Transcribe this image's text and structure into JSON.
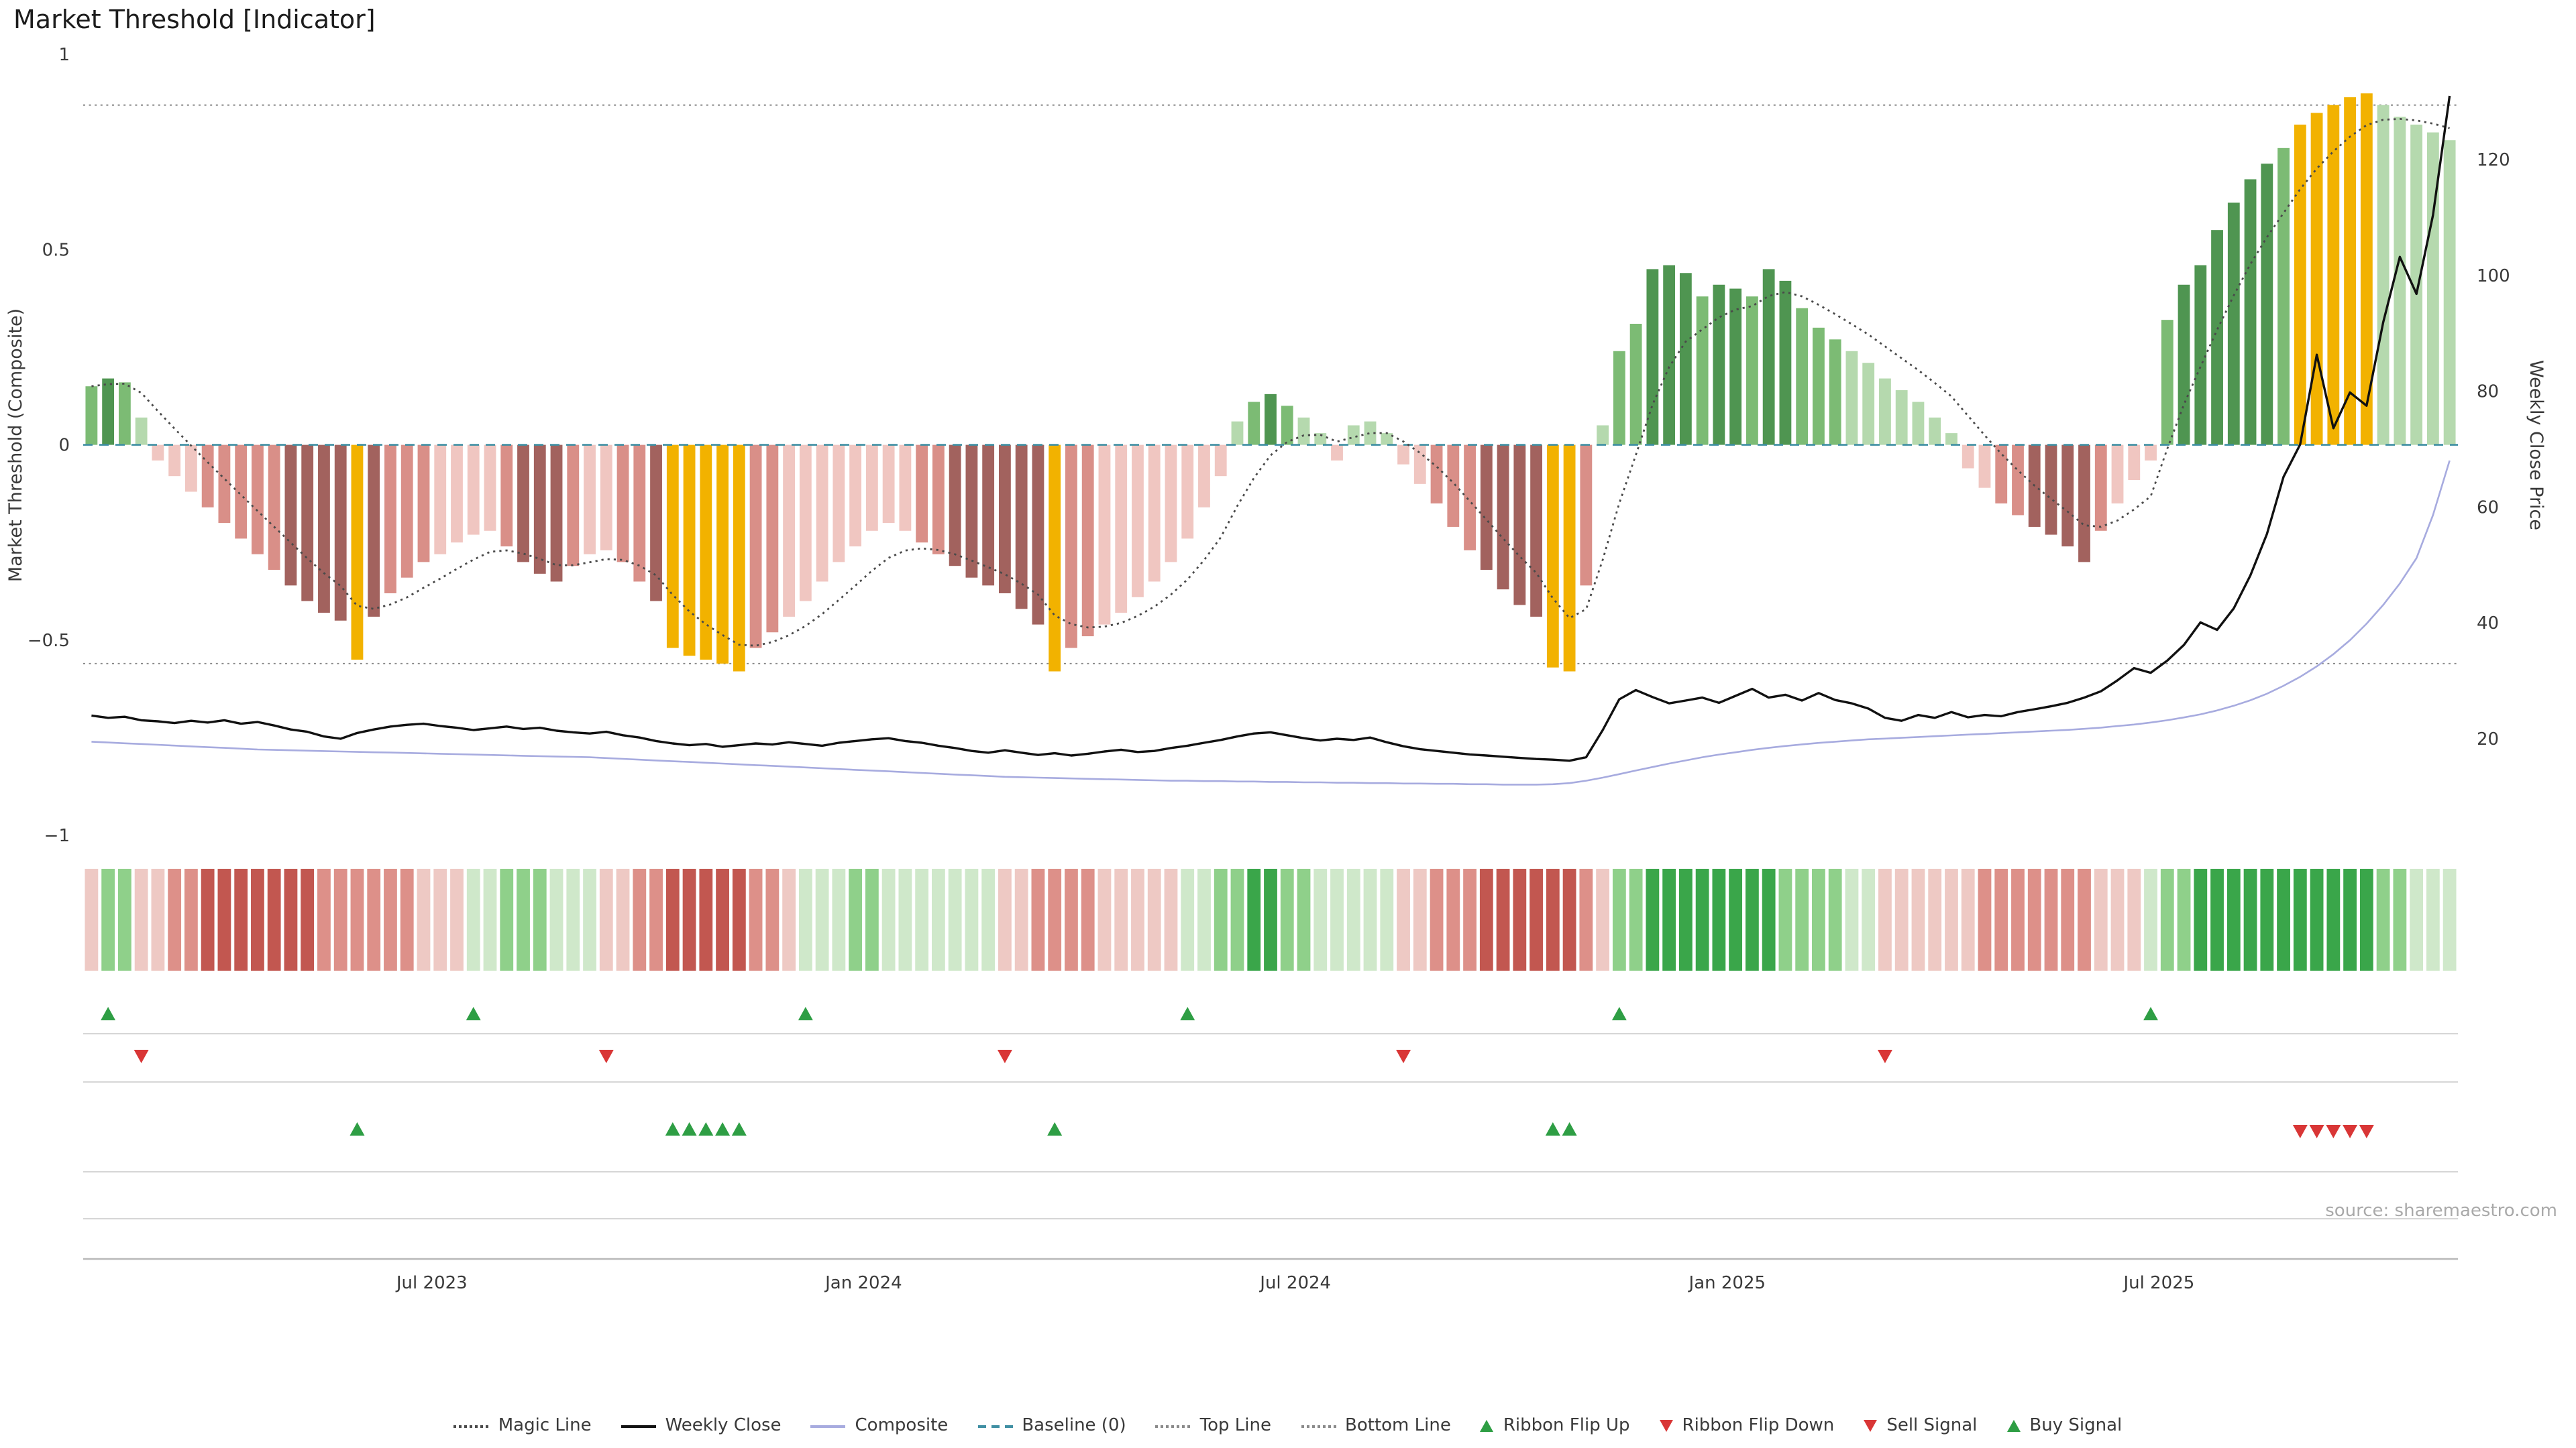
{
  "title": "Market Threshold [Indicator]",
  "source": "source: sharemaestro.com",
  "axes": {
    "y_left_label": "Market Threshold (Composite)",
    "y_right_label": "Weekly Close Price",
    "y_left_ticks": [
      "1",
      "0.5",
      "0",
      "−0.5",
      "−1"
    ],
    "y_left_tick_values": [
      1,
      0.5,
      0,
      -0.5,
      -1
    ],
    "y_right_ticks": [
      "120",
      "100",
      "80",
      "60",
      "40",
      "20"
    ],
    "y_right_tick_values": [
      120,
      100,
      80,
      60,
      40,
      20
    ]
  },
  "colors": {
    "bars": {
      "g1": "#b5d9ae",
      "g2": "#7cbb74",
      "g3": "#4f9551",
      "r1": "#f0c6c1",
      "r2": "#d98f88",
      "r3": "#a2625e",
      "gd": "#f2b200"
    },
    "ribbon": {
      "1": "#cfe8ca",
      "2": "#8fd08a",
      "3": "#3aa64a",
      "-1": "#eec9c4",
      "-2": "#dd9089",
      "-3": "#c25750"
    },
    "lines": {
      "magic": "#4a4a4a",
      "close": "#111111",
      "composite": "#a7abdf",
      "baseline": "#3f8fa3",
      "topline": "#8a8a8a",
      "bottomline": "#8a8a8a"
    },
    "signals": {
      "up": "#2e9e44",
      "down": "#d93636"
    },
    "lane_line": "#d6d6d6",
    "axis_line": "#b8b8b8",
    "tick_text": "#3a3a3a"
  },
  "legend": [
    {
      "label": "Magic Line",
      "icon": "dotted-line",
      "color": "#4a4a4a"
    },
    {
      "label": "Weekly Close",
      "icon": "solid-line",
      "color": "#111111"
    },
    {
      "label": "Composite",
      "icon": "solid-line",
      "color": "#a7abdf"
    },
    {
      "label": "Baseline (0)",
      "icon": "dashed-line",
      "color": "#3f8fa3"
    },
    {
      "label": "Top Line",
      "icon": "dotted-line",
      "color": "#8a8a8a"
    },
    {
      "label": "Bottom Line",
      "icon": "dotted-line",
      "color": "#8a8a8a"
    },
    {
      "label": "Ribbon Flip Up",
      "icon": "triangle-up",
      "color": "#2e9e44"
    },
    {
      "label": "Ribbon Flip Down",
      "icon": "triangle-down",
      "color": "#d93636"
    },
    {
      "label": "Sell Signal",
      "icon": "triangle-down",
      "color": "#d93636"
    },
    {
      "label": "Buy Signal",
      "icon": "triangle-up",
      "color": "#2e9e44"
    }
  ],
  "chart_data": {
    "type": "bar+line",
    "title": "Market Threshold [Indicator]",
    "weeks": 143,
    "x_ticks": [
      {
        "label": "Jul 2023",
        "week": 21
      },
      {
        "label": "Jan 2024",
        "week": 47
      },
      {
        "label": "Jul 2024",
        "week": 73
      },
      {
        "label": "Jan 2025",
        "week": 99
      },
      {
        "label": "Jul 2025",
        "week": 125
      }
    ],
    "y_left_range": [
      -1,
      1
    ],
    "top_line": 0.87,
    "bottom_line": -0.56,
    "baseline": 0,
    "magic_line": {
      "derived_from": "threshold_bars",
      "ema_alpha": 0.27
    },
    "threshold_bars": {
      "values": [
        0.15,
        0.17,
        0.16,
        0.07,
        -0.04,
        -0.08,
        -0.12,
        -0.16,
        -0.2,
        -0.24,
        -0.28,
        -0.32,
        -0.36,
        -0.4,
        -0.43,
        -0.45,
        -0.55,
        -0.44,
        -0.38,
        -0.34,
        -0.3,
        -0.28,
        -0.25,
        -0.23,
        -0.22,
        -0.26,
        -0.3,
        -0.33,
        -0.35,
        -0.31,
        -0.28,
        -0.27,
        -0.3,
        -0.35,
        -0.4,
        -0.52,
        -0.54,
        -0.55,
        -0.56,
        -0.58,
        -0.52,
        -0.48,
        -0.44,
        -0.4,
        -0.35,
        -0.3,
        -0.26,
        -0.22,
        -0.2,
        -0.22,
        -0.25,
        -0.28,
        -0.31,
        -0.34,
        -0.36,
        -0.38,
        -0.42,
        -0.46,
        -0.58,
        -0.52,
        -0.49,
        -0.46,
        -0.43,
        -0.39,
        -0.35,
        -0.3,
        -0.24,
        -0.16,
        -0.08,
        0.06,
        0.11,
        0.13,
        0.1,
        0.07,
        0.03,
        -0.04,
        0.05,
        0.06,
        0.03,
        -0.05,
        -0.1,
        -0.15,
        -0.21,
        -0.27,
        -0.32,
        -0.37,
        -0.41,
        -0.44,
        -0.57,
        -0.58,
        -0.36,
        0.05,
        0.24,
        0.31,
        0.45,
        0.46,
        0.44,
        0.38,
        0.41,
        0.4,
        0.38,
        0.45,
        0.42,
        0.35,
        0.3,
        0.27,
        0.24,
        0.21,
        0.17,
        0.14,
        0.11,
        0.07,
        0.03,
        -0.06,
        -0.11,
        -0.15,
        -0.18,
        -0.21,
        -0.23,
        -0.26,
        -0.3,
        -0.22,
        -0.15,
        -0.09,
        -0.04,
        0.32,
        0.41,
        0.46,
        0.55,
        0.62,
        0.68,
        0.72,
        0.76,
        0.82,
        0.85,
        0.87,
        0.89,
        0.9,
        0.87,
        0.84,
        0.82,
        0.8,
        0.78
      ],
      "colors": [
        "g2",
        "g3",
        "g2",
        "g1",
        "r1",
        "r1",
        "r1",
        "r2",
        "r2",
        "r2",
        "r2",
        "r2",
        "r3",
        "r3",
        "r3",
        "r3",
        "gd",
        "r3",
        "r2",
        "r2",
        "r2",
        "r1",
        "r1",
        "r1",
        "r1",
        "r2",
        "r3",
        "r3",
        "r3",
        "r2",
        "r1",
        "r1",
        "r2",
        "r2",
        "r3",
        "gd",
        "gd",
        "gd",
        "gd",
        "gd",
        "r2",
        "r2",
        "r1",
        "r1",
        "r1",
        "r1",
        "r1",
        "r1",
        "r1",
        "r1",
        "r2",
        "r2",
        "r3",
        "r3",
        "r3",
        "r3",
        "r3",
        "r3",
        "gd",
        "r2",
        "r2",
        "r1",
        "r1",
        "r1",
        "r1",
        "r1",
        "r1",
        "r1",
        "r1",
        "g1",
        "g2",
        "g3",
        "g2",
        "g1",
        "g1",
        "r1",
        "g1",
        "g1",
        "g1",
        "r1",
        "r1",
        "r2",
        "r2",
        "r2",
        "r3",
        "r3",
        "r3",
        "r3",
        "gd",
        "gd",
        "r2",
        "g1",
        "g2",
        "g2",
        "g3",
        "g3",
        "g3",
        "g2",
        "g3",
        "g3",
        "g2",
        "g3",
        "g3",
        "g2",
        "g2",
        "g2",
        "g1",
        "g1",
        "g1",
        "g1",
        "g1",
        "g1",
        "g1",
        "r1",
        "r1",
        "r2",
        "r2",
        "r3",
        "r3",
        "r3",
        "r3",
        "r2",
        "r1",
        "r1",
        "r1",
        "g2",
        "g3",
        "g3",
        "g3",
        "g3",
        "g3",
        "g3",
        "g2",
        "gd",
        "gd",
        "gd",
        "gd",
        "gd",
        "g1",
        "g1",
        "g1",
        "g1",
        "g1"
      ]
    },
    "weekly_close": [
      24.0,
      23.6,
      23.8,
      23.2,
      23.0,
      22.7,
      23.1,
      22.8,
      23.2,
      22.6,
      22.9,
      22.3,
      21.6,
      21.2,
      20.4,
      20.0,
      21.0,
      21.6,
      22.1,
      22.4,
      22.6,
      22.2,
      21.9,
      21.5,
      21.8,
      22.1,
      21.7,
      21.9,
      21.4,
      21.1,
      20.9,
      21.2,
      20.6,
      20.2,
      19.6,
      19.2,
      18.9,
      19.1,
      18.6,
      18.9,
      19.2,
      19.0,
      19.4,
      19.1,
      18.8,
      19.3,
      19.6,
      19.9,
      20.1,
      19.6,
      19.3,
      18.8,
      18.4,
      17.9,
      17.6,
      18.0,
      17.6,
      17.2,
      17.5,
      17.1,
      17.4,
      17.8,
      18.1,
      17.7,
      17.9,
      18.4,
      18.8,
      19.3,
      19.8,
      20.4,
      20.9,
      21.1,
      20.6,
      20.1,
      19.7,
      20.0,
      19.8,
      20.2,
      19.4,
      18.7,
      18.2,
      17.9,
      17.6,
      17.3,
      17.1,
      16.9,
      16.7,
      16.5,
      16.4,
      16.2,
      16.8,
      21.5,
      26.8,
      28.4,
      27.2,
      26.1,
      26.6,
      27.1,
      26.2,
      27.4,
      28.6,
      27.1,
      27.6,
      26.6,
      27.9,
      26.7,
      26.1,
      25.2,
      23.6,
      23.1,
      24.1,
      23.6,
      24.6,
      23.7,
      24.1,
      23.9,
      24.6,
      25.1,
      25.6,
      26.2,
      27.1,
      28.2,
      30.1,
      32.2,
      31.4,
      33.5,
      36.2,
      40.1,
      38.8,
      42.5,
      48.2,
      55.4,
      65.2,
      70.8,
      86.3,
      73.6,
      79.8,
      77.5,
      91.9,
      103.2,
      96.8,
      110.4,
      131.0
    ],
    "composite": [
      -0.76,
      -0.762,
      -0.764,
      -0.766,
      -0.768,
      -0.77,
      -0.772,
      -0.774,
      -0.776,
      -0.778,
      -0.78,
      -0.781,
      -0.782,
      -0.783,
      -0.784,
      -0.785,
      -0.786,
      -0.787,
      -0.788,
      -0.789,
      -0.79,
      -0.791,
      -0.792,
      -0.793,
      -0.794,
      -0.795,
      -0.796,
      -0.797,
      -0.798,
      -0.799,
      -0.8,
      -0.802,
      -0.804,
      -0.806,
      -0.808,
      -0.81,
      -0.812,
      -0.814,
      -0.816,
      -0.818,
      -0.82,
      -0.822,
      -0.824,
      -0.826,
      -0.828,
      -0.83,
      -0.832,
      -0.834,
      -0.836,
      -0.838,
      -0.84,
      -0.842,
      -0.844,
      -0.846,
      -0.848,
      -0.85,
      -0.851,
      -0.852,
      -0.853,
      -0.854,
      -0.855,
      -0.856,
      -0.857,
      -0.858,
      -0.859,
      -0.86,
      -0.86,
      -0.861,
      -0.861,
      -0.862,
      -0.862,
      -0.863,
      -0.863,
      -0.864,
      -0.864,
      -0.865,
      -0.865,
      -0.866,
      -0.866,
      -0.867,
      -0.867,
      -0.868,
      -0.868,
      -0.869,
      -0.869,
      -0.87,
      -0.87,
      -0.87,
      -0.869,
      -0.866,
      -0.86,
      -0.852,
      -0.843,
      -0.834,
      -0.825,
      -0.816,
      -0.808,
      -0.8,
      -0.793,
      -0.787,
      -0.781,
      -0.776,
      -0.771,
      -0.767,
      -0.763,
      -0.76,
      -0.757,
      -0.754,
      -0.752,
      -0.75,
      -0.748,
      -0.746,
      -0.744,
      -0.742,
      -0.74,
      -0.738,
      -0.736,
      -0.734,
      -0.732,
      -0.73,
      -0.727,
      -0.724,
      -0.72,
      -0.716,
      -0.711,
      -0.705,
      -0.698,
      -0.69,
      -0.68,
      -0.668,
      -0.654,
      -0.637,
      -0.617,
      -0.594,
      -0.567,
      -0.536,
      -0.5,
      -0.458,
      -0.41,
      -0.355,
      -0.29,
      -0.18,
      -0.04
    ],
    "ribbon": [
      -1,
      2,
      2,
      -1,
      -1,
      -2,
      -2,
      -3,
      -3,
      -3,
      -3,
      -3,
      -3,
      -3,
      -2,
      -2,
      -2,
      -2,
      -2,
      -2,
      -1,
      -1,
      -1,
      1,
      1,
      2,
      2,
      2,
      1,
      1,
      1,
      -1,
      -1,
      -2,
      -2,
      -3,
      -3,
      -3,
      -3,
      -3,
      -2,
      -2,
      -1,
      1,
      1,
      1,
      2,
      2,
      1,
      1,
      1,
      1,
      1,
      1,
      1,
      -1,
      -1,
      -2,
      -2,
      -2,
      -2,
      -1,
      -1,
      -1,
      -1,
      -1,
      1,
      1,
      2,
      2,
      3,
      3,
      2,
      2,
      1,
      1,
      1,
      1,
      1,
      -1,
      -1,
      -2,
      -2,
      -2,
      -3,
      -3,
      -3,
      -3,
      -3,
      -3,
      -2,
      -1,
      2,
      2,
      3,
      3,
      3,
      3,
      3,
      3,
      3,
      3,
      2,
      2,
      2,
      2,
      1,
      1,
      -1,
      -1,
      -1,
      -1,
      -1,
      -1,
      -2,
      -2,
      -2,
      -2,
      -2,
      -2,
      -2,
      -1,
      -1,
      -1,
      1,
      2,
      2,
      3,
      3,
      3,
      3,
      3,
      3,
      3,
      3,
      3,
      3,
      3,
      2,
      2,
      1,
      1,
      1
    ],
    "signals": {
      "ribbon_flip_up": [
        1,
        23,
        43,
        66,
        92,
        124
      ],
      "ribbon_flip_down": [
        3,
        31,
        55,
        79,
        108
      ],
      "buy": [
        16,
        35,
        36,
        37,
        38,
        39,
        58,
        88,
        89
      ],
      "sell": [
        133,
        134,
        135,
        136,
        137
      ]
    }
  }
}
